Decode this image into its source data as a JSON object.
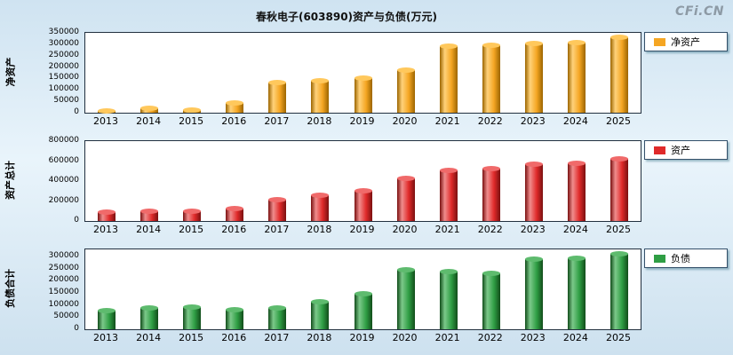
{
  "title": "春秋电子(603890)资产与负债(万元)",
  "logo": "CFi.CN",
  "chart_data": [
    {
      "type": "bar",
      "name": "net-assets",
      "ylabel": "净资产",
      "legend": "净资产",
      "colors": {
        "main": "#f5a623",
        "light": "#ffd27a",
        "dark": "#9c6500",
        "cap": "#ffc85c"
      },
      "ymax": 350000,
      "ylim": [
        0,
        350000
      ],
      "yticks": [
        0,
        50000,
        100000,
        150000,
        200000,
        250000,
        300000,
        350000
      ],
      "categories": [
        "2013",
        "2014",
        "2015",
        "2016",
        "2017",
        "2018",
        "2019",
        "2020",
        "2021",
        "2022",
        "2023",
        "2024",
        "2025"
      ],
      "values": [
        8000,
        18000,
        10000,
        42000,
        133000,
        140000,
        150000,
        185000,
        290000,
        297000,
        305000,
        307000,
        330000
      ]
    },
    {
      "type": "bar",
      "name": "total-assets",
      "ylabel": "资产总计",
      "legend": "资产",
      "colors": {
        "main": "#e02a2a",
        "light": "#f08d8d",
        "dark": "#7a1010",
        "cap": "#f06a6a"
      },
      "ymax": 800000,
      "ylim": [
        0,
        800000
      ],
      "yticks": [
        0,
        200000,
        400000,
        600000,
        800000
      ],
      "categories": [
        "2013",
        "2014",
        "2015",
        "2016",
        "2017",
        "2018",
        "2019",
        "2020",
        "2021",
        "2022",
        "2023",
        "2024",
        "2025"
      ],
      "values": [
        85000,
        100000,
        100000,
        120000,
        215000,
        255000,
        300000,
        430000,
        510000,
        520000,
        565000,
        575000,
        620000
      ]
    },
    {
      "type": "bar",
      "name": "total-liabilities",
      "ylabel": "负债合计",
      "legend": "负债",
      "colors": {
        "main": "#2f9e44",
        "light": "#7cc98a",
        "dark": "#114d1a",
        "cap": "#5ebb6e"
      },
      "ymax": 330000,
      "ylim": [
        0,
        330000
      ],
      "yticks": [
        0,
        50000,
        100000,
        150000,
        200000,
        250000,
        300000
      ],
      "categories": [
        "2013",
        "2014",
        "2015",
        "2016",
        "2017",
        "2018",
        "2019",
        "2020",
        "2021",
        "2022",
        "2023",
        "2024",
        "2025"
      ],
      "values": [
        78000,
        88000,
        92000,
        80000,
        88000,
        112000,
        148000,
        245000,
        238000,
        232000,
        290000,
        295000,
        310000
      ]
    }
  ]
}
